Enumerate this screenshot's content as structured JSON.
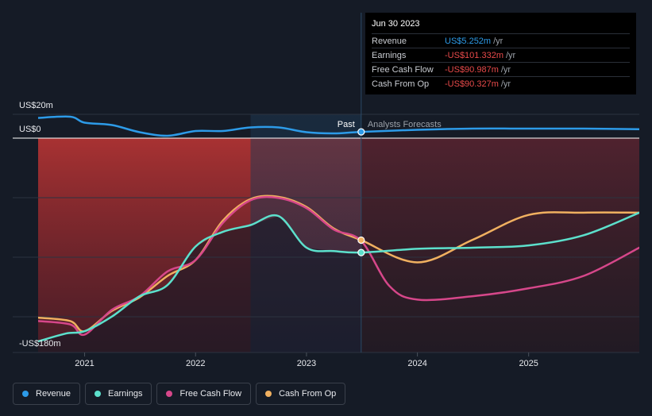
{
  "chart_data": {
    "type": "line",
    "y_unit_labels": [
      "US$20m",
      "US$0",
      "-US$180m"
    ],
    "x_tick_labels": [
      "2021",
      "2022",
      "2023",
      "2024",
      "2025"
    ],
    "ylim": [
      -180,
      20
    ],
    "divider_date": "2023-06-30",
    "past_label": "Past",
    "forecast_label": "Analysts Forecasts",
    "series": [
      {
        "name": "Revenue",
        "color": "#2d9be8",
        "points": [
          [
            "2020-08-01",
            17
          ],
          [
            "2020-11-15",
            18
          ],
          [
            "2021-01-01",
            13
          ],
          [
            "2021-04-01",
            11
          ],
          [
            "2021-07-01",
            5
          ],
          [
            "2021-10-01",
            2
          ],
          [
            "2022-01-01",
            6
          ],
          [
            "2022-04-01",
            6
          ],
          [
            "2022-07-01",
            9
          ],
          [
            "2022-10-01",
            9
          ],
          [
            "2023-01-01",
            5
          ],
          [
            "2023-04-01",
            4
          ],
          [
            "2023-06-30",
            5.252
          ],
          [
            "2024-01-01",
            7
          ],
          [
            "2024-07-01",
            8
          ],
          [
            "2025-01-01",
            8
          ],
          [
            "2025-07-01",
            8
          ],
          [
            "2025-12-31",
            7.5
          ]
        ]
      },
      {
        "name": "Earnings",
        "color": "#5ce0cc",
        "points": [
          [
            "2020-08-01",
            -180
          ],
          [
            "2020-11-01",
            -173
          ],
          [
            "2021-01-01",
            -171
          ],
          [
            "2021-04-01",
            -158
          ],
          [
            "2021-07-01",
            -140
          ],
          [
            "2021-10-01",
            -130
          ],
          [
            "2022-01-01",
            -96
          ],
          [
            "2022-04-01",
            -83
          ],
          [
            "2022-07-01",
            -77
          ],
          [
            "2022-10-01",
            -69
          ],
          [
            "2023-01-01",
            -97
          ],
          [
            "2023-04-01",
            -100
          ],
          [
            "2023-06-30",
            -101.332
          ],
          [
            "2024-01-01",
            -98
          ],
          [
            "2024-07-01",
            -97
          ],
          [
            "2025-01-01",
            -95
          ],
          [
            "2025-07-01",
            -86
          ],
          [
            "2025-12-31",
            -66
          ]
        ]
      },
      {
        "name": "Free Cash Flow",
        "color": "#d6478a",
        "points": [
          [
            "2020-08-01",
            -162
          ],
          [
            "2020-11-15",
            -165
          ],
          [
            "2021-01-01",
            -174
          ],
          [
            "2021-04-01",
            -152
          ],
          [
            "2021-07-01",
            -140
          ],
          [
            "2021-10-01",
            -118
          ],
          [
            "2022-01-01",
            -108
          ],
          [
            "2022-04-01",
            -75
          ],
          [
            "2022-07-01",
            -55
          ],
          [
            "2022-10-01",
            -53
          ],
          [
            "2023-01-01",
            -62
          ],
          [
            "2023-04-01",
            -81
          ],
          [
            "2023-06-30",
            -90.987
          ],
          [
            "2023-10-01",
            -131
          ],
          [
            "2024-01-01",
            -143
          ],
          [
            "2024-07-01",
            -140
          ],
          [
            "2025-01-01",
            -133
          ],
          [
            "2025-07-01",
            -122
          ],
          [
            "2025-12-31",
            -97
          ]
        ]
      },
      {
        "name": "Cash From Op",
        "color": "#f0b060",
        "points": [
          [
            "2020-08-01",
            -159
          ],
          [
            "2020-11-15",
            -162
          ],
          [
            "2021-01-01",
            -171
          ],
          [
            "2021-04-01",
            -153
          ],
          [
            "2021-07-01",
            -141
          ],
          [
            "2021-10-01",
            -122
          ],
          [
            "2022-01-01",
            -108
          ],
          [
            "2022-04-01",
            -73
          ],
          [
            "2022-07-01",
            -54
          ],
          [
            "2022-10-01",
            -52
          ],
          [
            "2023-01-01",
            -61
          ],
          [
            "2023-04-01",
            -80
          ],
          [
            "2023-06-30",
            -90.327
          ],
          [
            "2024-01-01",
            -110
          ],
          [
            "2024-07-01",
            -90
          ],
          [
            "2025-01-01",
            -68
          ],
          [
            "2025-07-01",
            -66
          ],
          [
            "2025-12-31",
            -66
          ]
        ]
      }
    ]
  },
  "tooltip": {
    "date": "Jun 30 2023",
    "rows": [
      {
        "label": "Revenue",
        "value": "US$5.252m",
        "unit": "/yr",
        "color": "#2d9be8"
      },
      {
        "label": "Earnings",
        "value": "-US$101.332m",
        "unit": "/yr",
        "color": "#e84a4a"
      },
      {
        "label": "Free Cash Flow",
        "value": "-US$90.987m",
        "unit": "/yr",
        "color": "#e84a4a"
      },
      {
        "label": "Cash From Op",
        "value": "-US$90.327m",
        "unit": "/yr",
        "color": "#e84a4a"
      }
    ]
  },
  "legend": [
    {
      "label": "Revenue",
      "color": "#2d9be8"
    },
    {
      "label": "Earnings",
      "color": "#5ce0cc"
    },
    {
      "label": "Free Cash Flow",
      "color": "#d6478a"
    },
    {
      "label": "Cash From Op",
      "color": "#f0b060"
    }
  ]
}
